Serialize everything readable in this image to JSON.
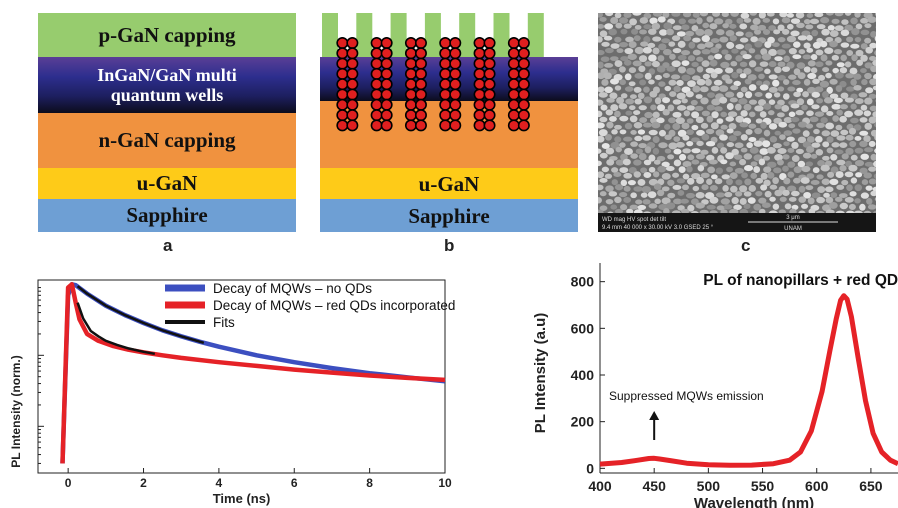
{
  "panel_a": {
    "label": "a",
    "layers": {
      "p_gan": "p-GaN capping",
      "mqw_line1": "InGaN/GaN multi",
      "mqw_line2": "quantum wells",
      "n_gan": "n-GaN capping",
      "u_gan": "u-GaN",
      "sapphire": "Sapphire"
    }
  },
  "panel_b": {
    "label": "b",
    "layers": {
      "u_gan": "u-GaN",
      "sapphire": "Sapphire"
    }
  },
  "panel_c": {
    "label": "c",
    "sem_info": {
      "line1": "WD   mag   HV   spot  det   tilt",
      "line2": "9.4 mm 40 000 x 30.00 kV 3.0 GSED 25 °",
      "scalebar": "3 μm",
      "institution": "UNAM"
    }
  },
  "colors": {
    "p_gan": "#97cc6e",
    "n_gan": "#f0923f",
    "u_gan": "#fecb18",
    "sapphire": "#6e9fd4",
    "qd": "#e01f1f",
    "blue_series": "#3c4fc0",
    "red_series": "#e52227"
  },
  "chart_data": [
    {
      "type": "line",
      "xlabel": "Time (ns)",
      "ylabel": "PL Intensity (norm.)",
      "xlim": [
        -0.8,
        10
      ],
      "xticks": [
        "0",
        "2",
        "4",
        "6",
        "8",
        "10"
      ],
      "log_y": true,
      "legend_position": "top-right",
      "series": [
        {
          "name": "Decay of MQWs – no QDs",
          "color": "#3c4fc0",
          "x": [
            -0.15,
            0,
            0.1,
            0.2,
            0.5,
            1.0,
            1.5,
            2.0,
            2.5,
            3.0,
            3.5,
            4.0,
            5.0,
            6.0,
            7.0,
            8.0,
            9.0,
            10.0
          ],
          "y": [
            0.003,
            0.7,
            1.0,
            0.97,
            0.74,
            0.5,
            0.37,
            0.285,
            0.225,
            0.185,
            0.155,
            0.132,
            0.1,
            0.08,
            0.066,
            0.056,
            0.049,
            0.043
          ]
        },
        {
          "name": "Decay of MQWs – red QDs incorporated",
          "color": "#e52227",
          "x": [
            -0.15,
            0,
            0.1,
            0.2,
            0.3,
            0.5,
            0.8,
            1.2,
            1.6,
            2.0,
            2.5,
            3.0,
            4.0,
            5.0,
            6.0,
            7.0,
            8.0,
            9.0,
            10.0
          ],
          "y": [
            0.003,
            0.9,
            1.0,
            0.55,
            0.32,
            0.2,
            0.16,
            0.135,
            0.12,
            0.11,
            0.1,
            0.092,
            0.08,
            0.071,
            0.063,
            0.057,
            0.052,
            0.048,
            0.045
          ]
        },
        {
          "name": "Fits",
          "color": "#111111",
          "segments": [
            {
              "x": [
                0.25,
                0.5,
                1.0,
                1.5,
                2.0,
                2.5,
                3.0,
                3.6
              ],
              "y": [
                0.94,
                0.74,
                0.5,
                0.37,
                0.285,
                0.225,
                0.185,
                0.15
              ]
            },
            {
              "x": [
                0.25,
                0.4,
                0.6,
                0.8,
                1.0,
                1.3,
                1.6,
                2.0,
                2.3
              ],
              "y": [
                0.55,
                0.33,
                0.22,
                0.185,
                0.16,
                0.14,
                0.125,
                0.112,
                0.105
              ]
            }
          ]
        }
      ]
    },
    {
      "type": "line",
      "title": "PL of nanopillars + red QDs",
      "xlabel": "Wavelength (nm)",
      "ylabel": "PL Intensity (a.u)",
      "xlim": [
        400,
        675
      ],
      "ylim": [
        -20,
        880
      ],
      "xticks": [
        400,
        450,
        500,
        550,
        600,
        650
      ],
      "yticks": [
        0,
        200,
        400,
        600,
        800
      ],
      "annotation": "Suppressed MQWs emission",
      "series": [
        {
          "color": "#e52227",
          "x": [
            400,
            420,
            435,
            445,
            450,
            455,
            465,
            480,
            500,
            520,
            540,
            560,
            575,
            585,
            595,
            605,
            612,
            618,
            622,
            625,
            628,
            632,
            638,
            645,
            652,
            660,
            668,
            675
          ],
          "y": [
            18,
            25,
            35,
            42,
            43,
            40,
            33,
            22,
            15,
            13,
            14,
            20,
            35,
            70,
            160,
            330,
            500,
            640,
            720,
            740,
            725,
            650,
            480,
            290,
            150,
            70,
            35,
            20
          ]
        }
      ]
    }
  ]
}
